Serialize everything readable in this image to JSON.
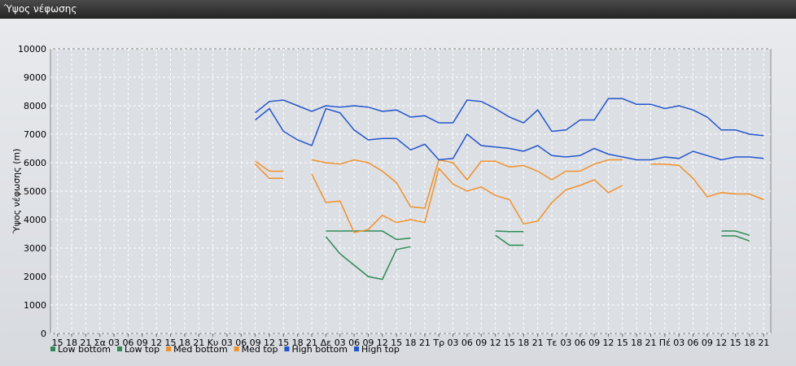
{
  "window": {
    "title": "Ύψος νέφωσης"
  },
  "chart_data": {
    "type": "line",
    "title": "",
    "xlabel": "",
    "ylabel": "Ύψος νέφωσης (m)",
    "ylim": [
      0,
      10000
    ],
    "yticks": [
      0,
      1000,
      2000,
      3000,
      4000,
      5000,
      6000,
      7000,
      8000,
      9000,
      10000
    ],
    "x_tick_labels": [
      "15",
      "18",
      "21",
      "Σα",
      "03",
      "06",
      "09",
      "12",
      "15",
      "18",
      "21",
      "Κυ",
      "03",
      "06",
      "09",
      "12",
      "15",
      "18",
      "21",
      "Δε",
      "03",
      "06",
      "09",
      "12",
      "15",
      "18",
      "21",
      "Τρ",
      "03",
      "06",
      "09",
      "12",
      "15",
      "18",
      "21",
      "Τε",
      "03",
      "06",
      "09",
      "12",
      "15",
      "18",
      "21",
      "Πέ",
      "03",
      "06",
      "09",
      "12",
      "15",
      "18",
      "21"
    ],
    "grid": true,
    "legend_position": "bottom-left",
    "series": [
      {
        "name": "Low bottom",
        "color": "#2e8b57",
        "values": [
          null,
          null,
          null,
          null,
          null,
          null,
          null,
          null,
          null,
          null,
          null,
          null,
          null,
          null,
          null,
          null,
          null,
          null,
          null,
          3400,
          2800,
          2400,
          2000,
          1900,
          2950,
          3050,
          null,
          null,
          null,
          null,
          null,
          3450,
          3100,
          3100,
          null,
          null,
          null,
          null,
          null,
          null,
          null,
          null,
          null,
          null,
          null,
          null,
          null,
          3430,
          3430,
          3250,
          null
        ]
      },
      {
        "name": "Low top",
        "color": "#2e8b57",
        "values": [
          null,
          null,
          null,
          null,
          null,
          null,
          null,
          null,
          null,
          null,
          null,
          null,
          null,
          null,
          null,
          null,
          null,
          null,
          null,
          3600,
          3600,
          3600,
          3600,
          3600,
          3300,
          3350,
          null,
          null,
          null,
          null,
          null,
          3600,
          3580,
          3580,
          null,
          null,
          null,
          null,
          null,
          null,
          null,
          null,
          null,
          null,
          null,
          null,
          null,
          3600,
          3600,
          3450,
          null
        ]
      },
      {
        "name": "Med bottom",
        "color": "#f0922b",
        "values": [
          null,
          null,
          null,
          null,
          null,
          null,
          null,
          null,
          null,
          null,
          null,
          null,
          null,
          null,
          5950,
          5450,
          5450,
          null,
          5600,
          4600,
          4650,
          3550,
          3650,
          4150,
          3900,
          4000,
          3900,
          5800,
          5250,
          5000,
          5150,
          4850,
          4700,
          3850,
          3950,
          4600,
          5050,
          5200,
          5400,
          4950,
          5200,
          null,
          null,
          null,
          null,
          null,
          null,
          null,
          null,
          null,
          null
        ]
      },
      {
        "name": "Med top",
        "color": "#f0922b",
        "values": [
          null,
          null,
          null,
          null,
          null,
          null,
          null,
          null,
          null,
          null,
          null,
          null,
          null,
          null,
          6050,
          5700,
          5700,
          null,
          6100,
          6000,
          5950,
          6100,
          6000,
          5700,
          5300,
          4450,
          4400,
          6100,
          6000,
          5400,
          6050,
          6050,
          5850,
          5900,
          5700,
          5400,
          5700,
          5700,
          5950,
          6100,
          6100,
          null,
          5950,
          5950,
          5900,
          5450,
          4800,
          4950,
          4900,
          4900,
          4700
        ]
      },
      {
        "name": "High bottom",
        "color": "#2255cc",
        "values": [
          null,
          null,
          null,
          null,
          null,
          null,
          null,
          null,
          null,
          null,
          null,
          null,
          null,
          null,
          7500,
          7900,
          7100,
          6800,
          6600,
          7900,
          7750,
          7150,
          6800,
          6850,
          6850,
          6450,
          6650,
          6100,
          6150,
          7000,
          6600,
          6550,
          6500,
          6400,
          6600,
          6250,
          6200,
          6250,
          6500,
          6300,
          6200,
          6100,
          6100,
          6200,
          6150,
          6400,
          6250,
          6100,
          6200,
          6200,
          6150
        ]
      },
      {
        "name": "High top",
        "color": "#2255cc",
        "values": [
          null,
          null,
          null,
          null,
          null,
          null,
          null,
          null,
          null,
          null,
          null,
          null,
          null,
          null,
          7750,
          8150,
          8200,
          8000,
          7800,
          8000,
          7950,
          8000,
          7950,
          7800,
          7850,
          7600,
          7650,
          7400,
          7400,
          8200,
          8150,
          7900,
          7600,
          7400,
          7850,
          7100,
          7150,
          7500,
          7500,
          8250,
          8250,
          8050,
          8050,
          7900,
          8000,
          7850,
          7600,
          7150,
          7150,
          7000,
          6950
        ]
      }
    ]
  }
}
